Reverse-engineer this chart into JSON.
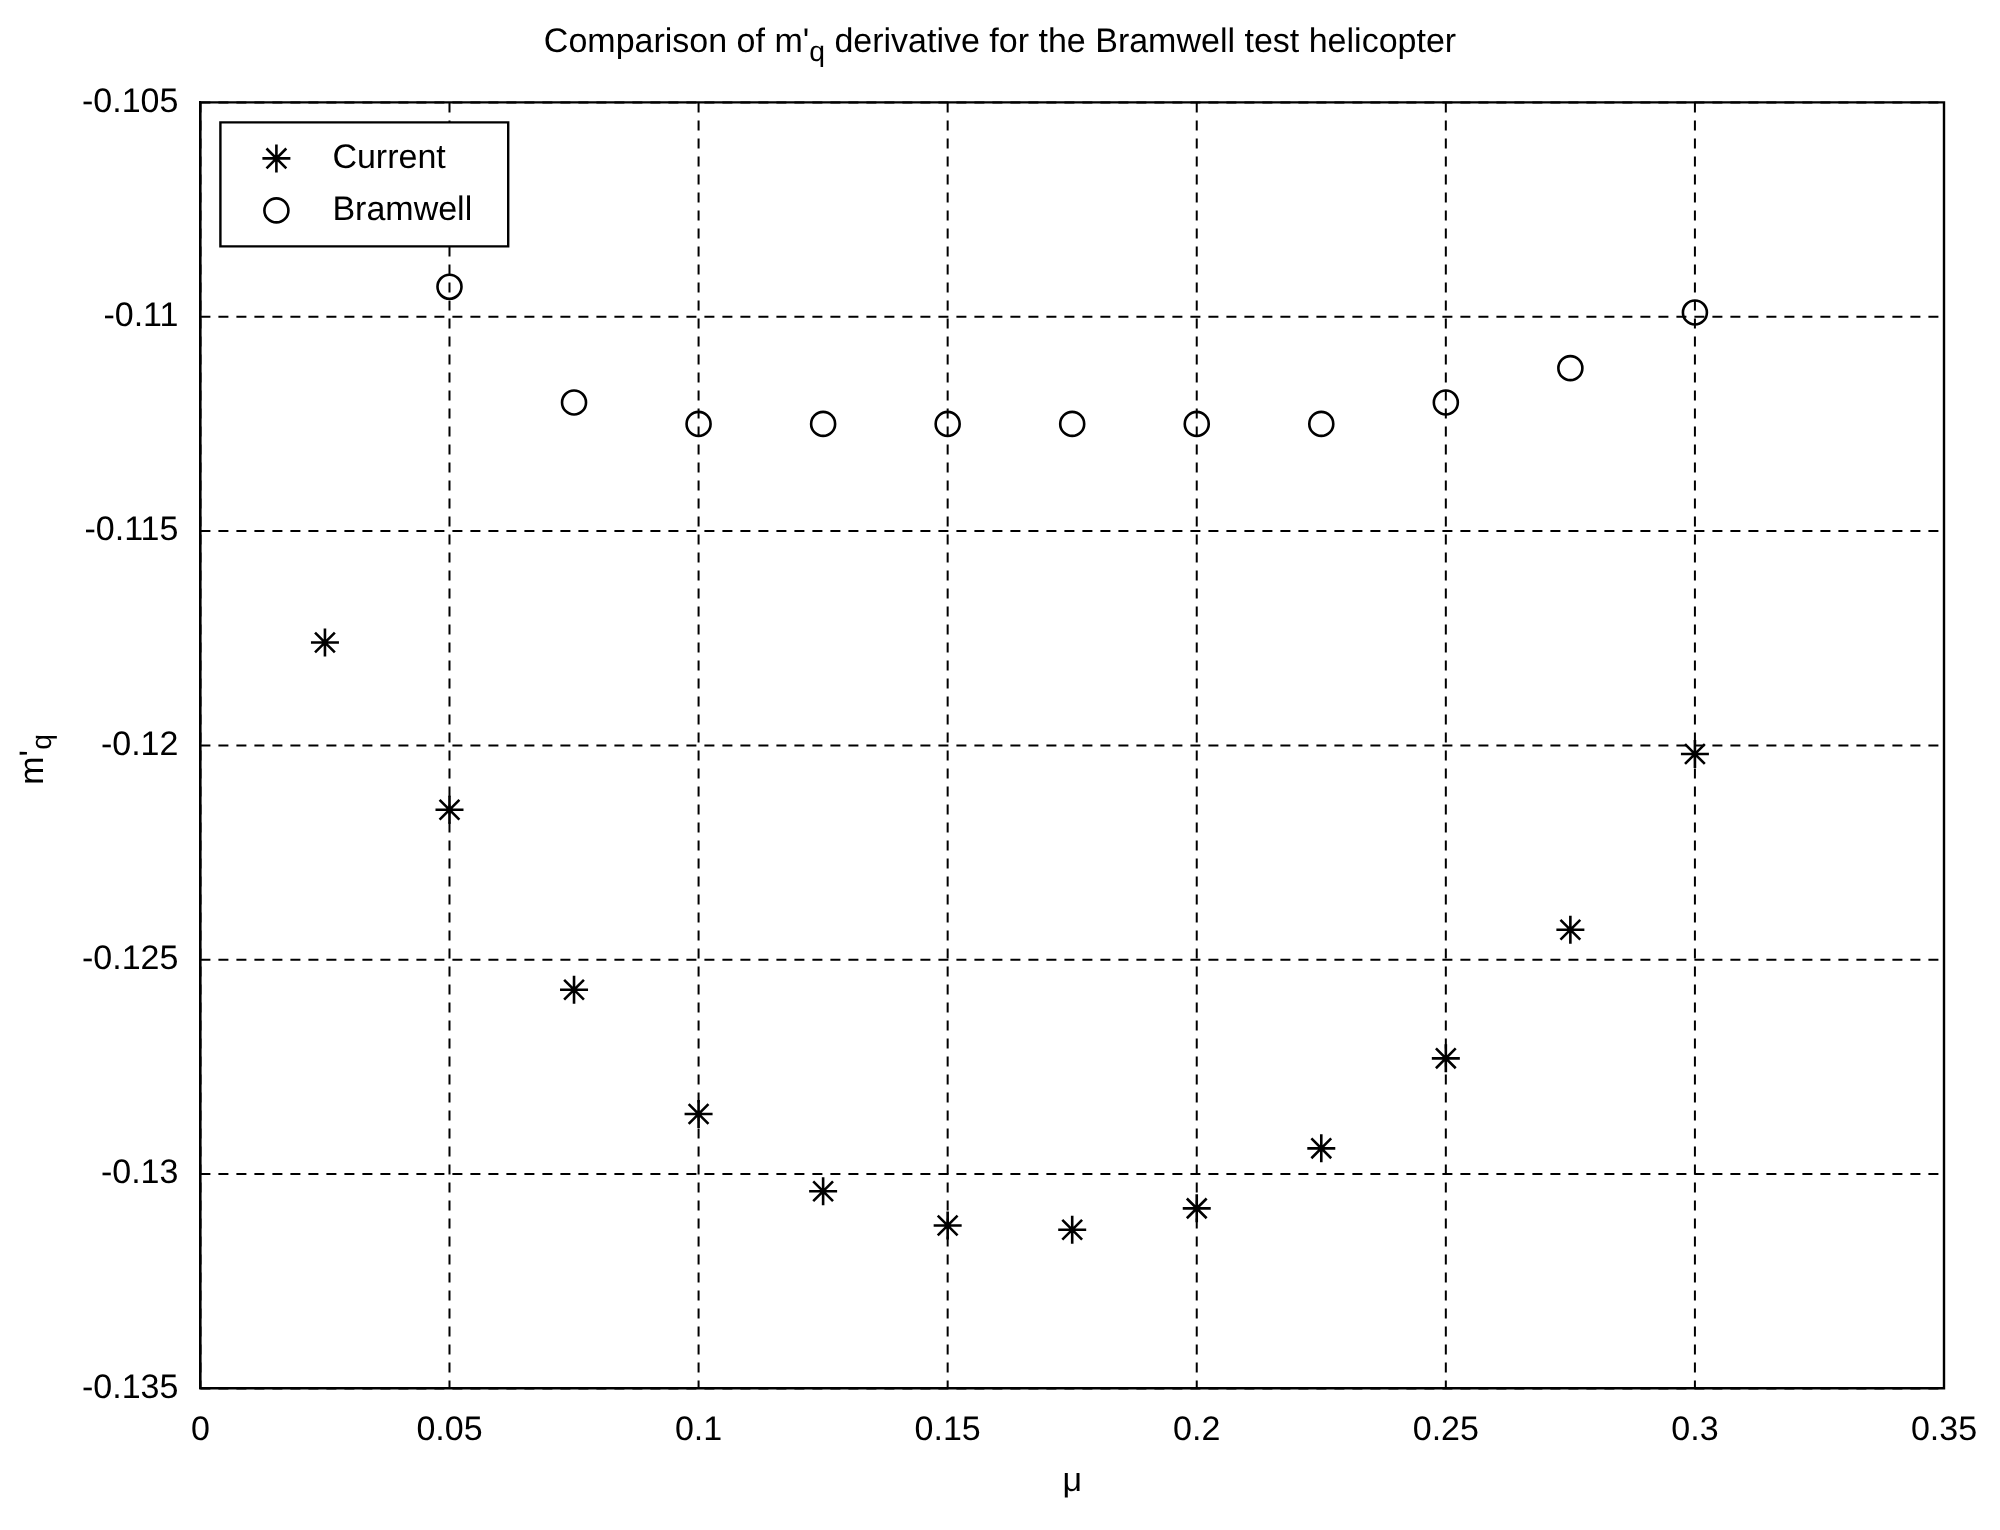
{
  "chart_data": {
    "type": "scatter",
    "title": "Comparison of m'$_{q}$ derivative for the Bramwell test helicopter",
    "xlabel": "μ",
    "ylabel": "m'$_{q}$",
    "x": [
      0.025,
      0.05,
      0.075,
      0.1,
      0.125,
      0.15,
      0.175,
      0.2,
      0.225,
      0.25,
      0.275,
      0.3
    ],
    "series": [
      {
        "name": "Current",
        "color": "#000000",
        "marker": "cross",
        "values": [
          -0.1176,
          -0.1215,
          -0.1257,
          -0.1286,
          -0.1304,
          -0.1312,
          -0.1313,
          -0.1308,
          -0.1294,
          -0.1273,
          -0.1243,
          -0.1202
        ]
      },
      {
        "name": "Bramwell",
        "color": "#000000",
        "marker": "circle",
        "values": [
          null,
          -0.1093,
          -0.112,
          -0.1125,
          -0.1125,
          -0.1125,
          -0.1125,
          -0.1125,
          -0.1125,
          -0.112,
          -0.1112,
          -0.1099
        ]
      }
    ],
    "xlim": [
      0,
      0.35
    ],
    "xticks": [
      0,
      0.05,
      0.1,
      0.15,
      0.2,
      0.25,
      0.3,
      0.35
    ],
    "ylim": [
      -0.135,
      -0.105
    ],
    "yticks": [
      -0.135,
      -0.13,
      -0.125,
      -0.12,
      -0.115,
      -0.11,
      -0.105
    ],
    "grid": true,
    "legend": "top left"
  }
}
